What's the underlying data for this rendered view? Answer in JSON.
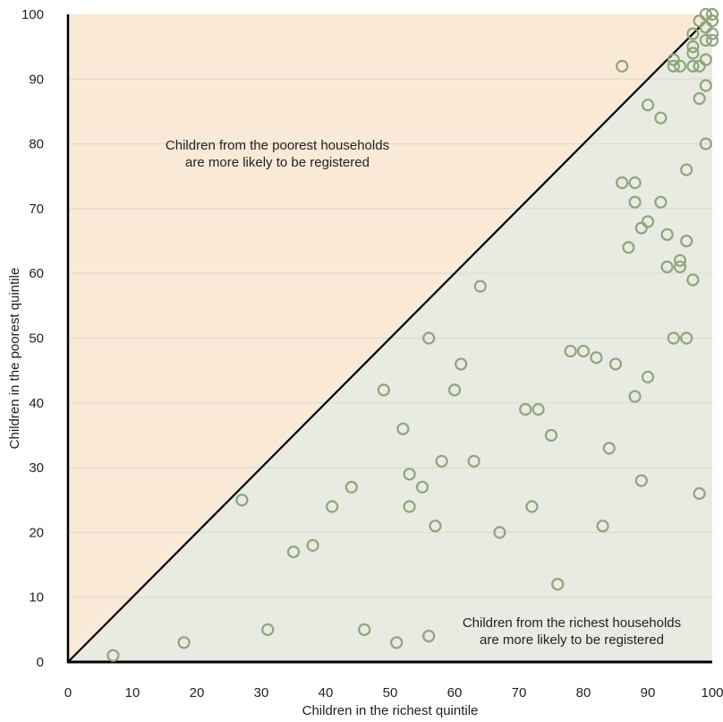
{
  "chart_data": {
    "type": "scatter",
    "title": "",
    "xlabel": "Children in the richest quintile",
    "ylabel": "Children in the poorest quintile",
    "xlim": [
      0,
      100
    ],
    "ylim": [
      0,
      100
    ],
    "xticks": [
      "0",
      "10",
      "20",
      "30",
      "40",
      "50",
      "60",
      "70",
      "80",
      "90",
      "100"
    ],
    "yticks": [
      "0",
      "10",
      "20",
      "30",
      "40",
      "50",
      "60",
      "70",
      "80",
      "90",
      "100"
    ],
    "grid": "horizontal",
    "annotations": {
      "upper": [
        "Children from the poorest households",
        "are more likely to be registered"
      ],
      "lower": [
        "Children from the richest households",
        "are more likely to be registered"
      ]
    },
    "colors": {
      "upper_region": "#fbe9d8",
      "lower_region": "#e9ebe3",
      "marker": "#8fa57a",
      "grid": "#dcdcd0",
      "axis": "#000000"
    },
    "points": [
      {
        "x": 7,
        "y": 1
      },
      {
        "x": 18,
        "y": 3
      },
      {
        "x": 27,
        "y": 25
      },
      {
        "x": 31,
        "y": 5
      },
      {
        "x": 35,
        "y": 17
      },
      {
        "x": 38,
        "y": 18
      },
      {
        "x": 41,
        "y": 24
      },
      {
        "x": 44,
        "y": 27
      },
      {
        "x": 46,
        "y": 5
      },
      {
        "x": 49,
        "y": 42
      },
      {
        "x": 51,
        "y": 3
      },
      {
        "x": 52,
        "y": 36
      },
      {
        "x": 53,
        "y": 29
      },
      {
        "x": 53,
        "y": 24
      },
      {
        "x": 55,
        "y": 27
      },
      {
        "x": 56,
        "y": 50
      },
      {
        "x": 56,
        "y": 4
      },
      {
        "x": 57,
        "y": 21
      },
      {
        "x": 58,
        "y": 31
      },
      {
        "x": 60,
        "y": 42
      },
      {
        "x": 61,
        "y": 46
      },
      {
        "x": 63,
        "y": 31
      },
      {
        "x": 64,
        "y": 58
      },
      {
        "x": 67,
        "y": 20
      },
      {
        "x": 71,
        "y": 39
      },
      {
        "x": 72,
        "y": 24
      },
      {
        "x": 73,
        "y": 39
      },
      {
        "x": 75,
        "y": 35
      },
      {
        "x": 76,
        "y": 12
      },
      {
        "x": 78,
        "y": 48
      },
      {
        "x": 80,
        "y": 48
      },
      {
        "x": 82,
        "y": 47
      },
      {
        "x": 83,
        "y": 21
      },
      {
        "x": 84,
        "y": 33
      },
      {
        "x": 85,
        "y": 46
      },
      {
        "x": 86,
        "y": 92
      },
      {
        "x": 86,
        "y": 74
      },
      {
        "x": 87,
        "y": 64
      },
      {
        "x": 88,
        "y": 74
      },
      {
        "x": 88,
        "y": 71
      },
      {
        "x": 88,
        "y": 41
      },
      {
        "x": 89,
        "y": 67
      },
      {
        "x": 89,
        "y": 28
      },
      {
        "x": 90,
        "y": 86
      },
      {
        "x": 90,
        "y": 68
      },
      {
        "x": 90,
        "y": 44
      },
      {
        "x": 92,
        "y": 84
      },
      {
        "x": 92,
        "y": 71
      },
      {
        "x": 93,
        "y": 66
      },
      {
        "x": 93,
        "y": 61
      },
      {
        "x": 94,
        "y": 93
      },
      {
        "x": 94,
        "y": 92
      },
      {
        "x": 94,
        "y": 50
      },
      {
        "x": 95,
        "y": 92
      },
      {
        "x": 95,
        "y": 62
      },
      {
        "x": 95,
        "y": 61
      },
      {
        "x": 96,
        "y": 76
      },
      {
        "x": 96,
        "y": 65
      },
      {
        "x": 96,
        "y": 50
      },
      {
        "x": 97,
        "y": 97
      },
      {
        "x": 97,
        "y": 95
      },
      {
        "x": 97,
        "y": 94
      },
      {
        "x": 97,
        "y": 92
      },
      {
        "x": 97,
        "y": 59
      },
      {
        "x": 98,
        "y": 99
      },
      {
        "x": 98,
        "y": 92
      },
      {
        "x": 98,
        "y": 87
      },
      {
        "x": 98,
        "y": 26
      },
      {
        "x": 99,
        "y": 100
      },
      {
        "x": 99,
        "y": 98
      },
      {
        "x": 99,
        "y": 96
      },
      {
        "x": 99,
        "y": 93
      },
      {
        "x": 99,
        "y": 89
      },
      {
        "x": 99,
        "y": 80
      },
      {
        "x": 100,
        "y": 100
      },
      {
        "x": 100,
        "y": 99
      },
      {
        "x": 100,
        "y": 97
      },
      {
        "x": 100,
        "y": 96
      }
    ]
  }
}
